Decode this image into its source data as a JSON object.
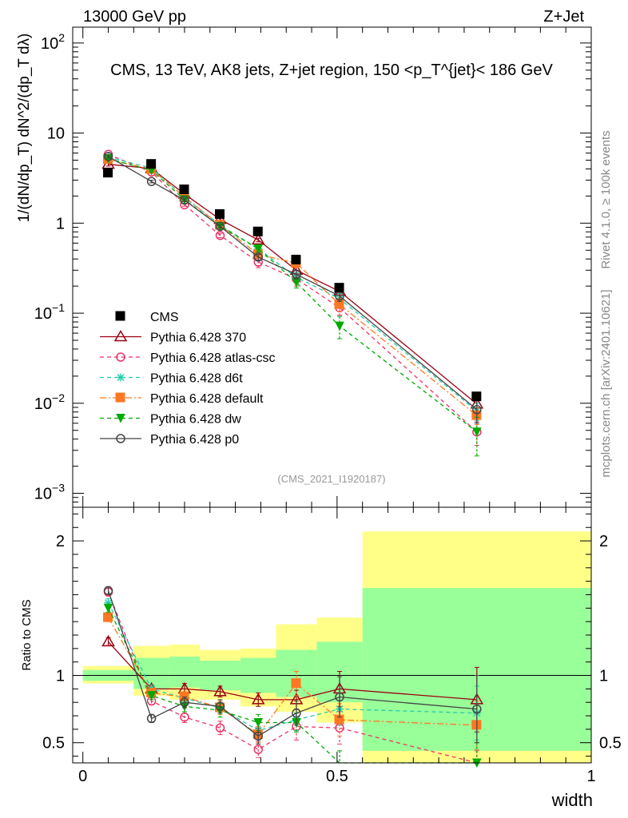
{
  "header": {
    "left": "13000 GeV pp",
    "right": "Z+Jet"
  },
  "side_labels": {
    "rivet": "Rivet 4.1.0, ≥ 100k events",
    "mcplots": "mcplots.cern.ch [arXiv:2401.10621]"
  },
  "chart_data": [
    {
      "panel": "main",
      "type": "line",
      "title": "CMS, 13 TeV, AK8 jets, Z+jet region, 150 <p_T^{jet}< 186 GeV",
      "ylabel": "1/(dN/dp_T) dN^2/(dp_T dλ)",
      "yscale": "log",
      "ylim": [
        0.0007,
        150
      ],
      "xlim": [
        -0.02,
        1.0
      ],
      "watermark": "(CMS_2021_I1920187)",
      "y_ticks": [
        {
          "value": 0.001,
          "base": "10",
          "exp": "−3"
        },
        {
          "value": 0.01,
          "base": "10",
          "exp": "−2"
        },
        {
          "value": 0.1,
          "base": "10",
          "exp": "−1"
        },
        {
          "value": 1,
          "base": "1",
          "exp": ""
        },
        {
          "value": 10,
          "base": "10",
          "exp": ""
        },
        {
          "value": 100,
          "base": "10",
          "exp": "2"
        }
      ],
      "x": [
        0.05,
        0.135,
        0.2,
        0.27,
        0.345,
        0.42,
        0.505,
        0.775
      ],
      "series": [
        {
          "name": "CMS",
          "color": "#000000",
          "marker": "square",
          "dash": "none",
          "values": [
            3.6,
            4.5,
            2.35,
            1.25,
            0.8,
            0.39,
            0.19,
            0.0118
          ]
        },
        {
          "name": "Pythia 6.428 370",
          "color": "#990011",
          "marker": "triangle-open",
          "dash": "solid",
          "values": [
            4.5,
            4.05,
            2.1,
            1.1,
            0.65,
            0.3,
            0.175,
            0.0098
          ],
          "errors": [
            0.2,
            0.12,
            0.06,
            0.04,
            0.03,
            0.03,
            0.015,
            0.0015
          ]
        },
        {
          "name": "Pythia 6.428 atlas-csc",
          "color": "#ee3366",
          "marker": "circle-open",
          "dash": "dashed",
          "values": [
            5.8,
            3.7,
            1.6,
            0.73,
            0.37,
            0.24,
            0.115,
            0.0048
          ],
          "errors": [
            0.2,
            0.12,
            0.06,
            0.04,
            0.05,
            0.04,
            0.02,
            0.0014
          ]
        },
        {
          "name": "Pythia 6.428 d6t",
          "color": "#22ccaa",
          "marker": "asterisk",
          "dash": "dashed",
          "values": [
            5.4,
            4.1,
            1.92,
            0.95,
            0.52,
            0.25,
            0.145,
            0.0082
          ],
          "errors": [
            0.2,
            0.12,
            0.06,
            0.04,
            0.04,
            0.03,
            0.02,
            0.0018
          ]
        },
        {
          "name": "Pythia 6.428 default",
          "color": "#ff7722",
          "marker": "square",
          "dash": "dashdot",
          "values": [
            5.1,
            3.95,
            1.95,
            0.95,
            0.45,
            0.36,
            0.125,
            0.0073
          ],
          "errors": [
            0.2,
            0.12,
            0.06,
            0.04,
            0.04,
            0.04,
            0.02,
            0.0015
          ]
        },
        {
          "name": "Pythia 6.428 dw",
          "color": "#00aa00",
          "marker": "triangle-down",
          "dash": "dashed",
          "values": [
            5.2,
            3.85,
            1.82,
            0.92,
            0.52,
            0.22,
            0.072,
            0.0048
          ],
          "errors": [
            0.2,
            0.12,
            0.06,
            0.04,
            0.04,
            0.03,
            0.02,
            0.0022
          ]
        },
        {
          "name": "Pythia 6.428 p0",
          "color": "#444444",
          "marker": "circle-open",
          "dash": "solid",
          "values": [
            5.5,
            2.9,
            1.8,
            0.92,
            0.42,
            0.27,
            0.155,
            0.0085
          ],
          "errors": [
            0.2,
            0.1,
            0.06,
            0.04,
            0.03,
            0.03,
            0.02,
            0.0025
          ]
        }
      ]
    },
    {
      "panel": "ratio",
      "type": "line",
      "ylabel": "Ratio to CMS",
      "xlabel": "width",
      "ylim": [
        0.35,
        2.25
      ],
      "xlim": [
        -0.02,
        1.0
      ],
      "x_ticks": [
        {
          "value": 0,
          "label": "0"
        },
        {
          "value": 0.5,
          "label": "0.5"
        },
        {
          "value": 1,
          "label": "1"
        }
      ],
      "y_ticks": [
        {
          "value": 0.5,
          "label": "0.5"
        },
        {
          "value": 1,
          "label": "1"
        },
        {
          "value": 2,
          "label": "2"
        }
      ],
      "uncertainty_bands": [
        {
          "x0": 0.0,
          "x1": 0.1,
          "stat_lo": 0.96,
          "stat_hi": 1.04,
          "tot_lo": 0.94,
          "tot_hi": 1.07
        },
        {
          "x0": 0.1,
          "x1": 0.17,
          "stat_lo": 0.9,
          "stat_hi": 1.13,
          "tot_lo": 0.85,
          "tot_hi": 1.22
        },
        {
          "x0": 0.17,
          "x1": 0.23,
          "stat_lo": 0.91,
          "stat_hi": 1.14,
          "tot_lo": 0.82,
          "tot_hi": 1.23
        },
        {
          "x0": 0.23,
          "x1": 0.31,
          "stat_lo": 0.89,
          "stat_hi": 1.11,
          "tot_lo": 0.82,
          "tot_hi": 1.19
        },
        {
          "x0": 0.31,
          "x1": 0.38,
          "stat_lo": 0.87,
          "stat_hi": 1.13,
          "tot_lo": 0.77,
          "tot_hi": 1.2
        },
        {
          "x0": 0.38,
          "x1": 0.46,
          "stat_lo": 0.84,
          "stat_hi": 1.19,
          "tot_lo": 0.73,
          "tot_hi": 1.38
        },
        {
          "x0": 0.46,
          "x1": 0.55,
          "stat_lo": 0.8,
          "stat_hi": 1.25,
          "tot_lo": 0.65,
          "tot_hi": 1.43
        },
        {
          "x0": 0.55,
          "x1": 1.0,
          "stat_lo": 0.44,
          "stat_hi": 1.65,
          "tot_lo": 0.35,
          "tot_hi": 2.07
        }
      ],
      "x": [
        0.05,
        0.135,
        0.2,
        0.27,
        0.345,
        0.42,
        0.505,
        0.775
      ],
      "series": [
        {
          "name": "Pythia 6.428 370",
          "color": "#990011",
          "marker": "triangle-open",
          "dash": "solid",
          "values": [
            1.25,
            0.9,
            0.9,
            0.88,
            0.82,
            0.82,
            0.9,
            0.82
          ],
          "errors": [
            0.03,
            0.03,
            0.04,
            0.04,
            0.05,
            0.07,
            0.13,
            0.24
          ]
        },
        {
          "name": "Pythia 6.428 atlas-csc",
          "color": "#ee3366",
          "marker": "circle-open",
          "dash": "dashed",
          "values": [
            1.62,
            0.81,
            0.69,
            0.61,
            0.45,
            0.62,
            0.61,
            0.34
          ],
          "errors": [
            0.03,
            0.03,
            0.04,
            0.05,
            0.06,
            0.1,
            0.12,
            0.1
          ]
        },
        {
          "name": "Pythia 6.428 d6t",
          "color": "#22ccaa",
          "marker": "asterisk",
          "dash": "dashed",
          "values": [
            1.54,
            0.9,
            0.83,
            0.76,
            0.59,
            0.67,
            0.75,
            0.72
          ],
          "errors": [
            0.03,
            0.03,
            0.04,
            0.05,
            0.06,
            0.08,
            0.12,
            0.2
          ]
        },
        {
          "name": "Pythia 6.428 default",
          "color": "#ff7722",
          "marker": "square",
          "dash": "dashdot",
          "values": [
            1.43,
            0.87,
            0.84,
            0.76,
            0.56,
            0.94,
            0.67,
            0.63
          ],
          "errors": [
            0.03,
            0.03,
            0.04,
            0.05,
            0.06,
            0.09,
            0.12,
            0.18
          ]
        },
        {
          "name": "Pythia 6.428 dw",
          "color": "#00aa00",
          "marker": "triangle-down",
          "dash": "dashed",
          "values": [
            1.5,
            0.85,
            0.77,
            0.74,
            0.65,
            0.65,
            0.32,
            0.35
          ],
          "errors": [
            0.03,
            0.03,
            0.04,
            0.05,
            0.06,
            0.07,
            0.12,
            0.15
          ]
        },
        {
          "name": "Pythia 6.428 p0",
          "color": "#444444",
          "marker": "circle-open",
          "dash": "solid",
          "values": [
            1.63,
            0.68,
            0.8,
            0.77,
            0.55,
            0.72,
            0.84,
            0.75
          ],
          "errors": [
            0.03,
            0.03,
            0.04,
            0.05,
            0.06,
            0.09,
            0.15,
            0.25
          ]
        }
      ]
    }
  ]
}
